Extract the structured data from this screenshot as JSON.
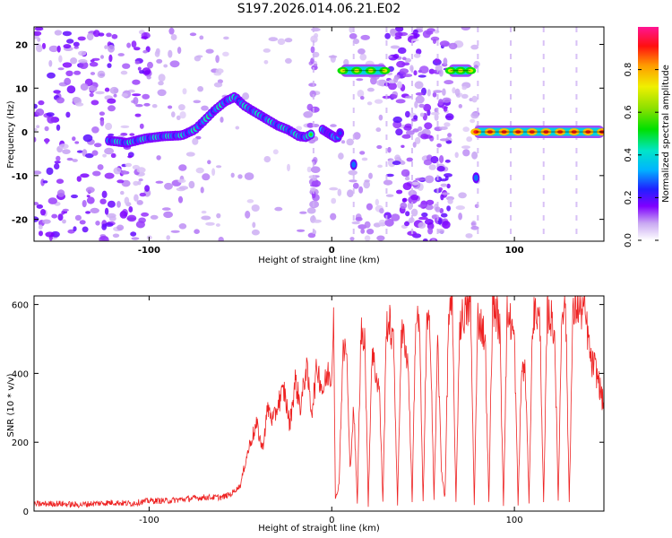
{
  "chart_data": [
    {
      "type": "heatmap",
      "title": "S197.2026.014.06.21.E02",
      "xlabel": "Height of straight line (km)",
      "ylabel": "Frequency (Hz)",
      "xlim": [
        -163,
        149
      ],
      "ylim": [
        -25,
        24
      ],
      "xticks": [
        -100,
        0,
        100
      ],
      "yticks": [
        -20,
        -10,
        0,
        10,
        20
      ],
      "colorbar": {
        "label": "Normalized spectral amplitude",
        "range": [
          0.0,
          1.0
        ],
        "ticks": [
          0.0,
          0.2,
          0.4,
          0.6,
          0.8
        ],
        "tick_labels": [
          "0.0",
          "0.2",
          "0.4",
          "0.6",
          "0.8"
        ],
        "colormap": [
          "#ffffff",
          "#c9a8f2",
          "#7f00ff",
          "#2020ff",
          "#00b4ff",
          "#00e5c8",
          "#00e000",
          "#8ee000",
          "#f0f000",
          "#ff9a00",
          "#ff1010",
          "#ff1493"
        ]
      },
      "ridge": {
        "name": "main frequency track",
        "points": [
          [
            -122,
            -2.0
          ],
          [
            -112,
            -2.5
          ],
          [
            -102,
            -1.5
          ],
          [
            -92,
            -1.0
          ],
          [
            -82,
            -0.8
          ],
          [
            -75,
            0.5
          ],
          [
            -70,
            2.5
          ],
          [
            -64,
            5.0
          ],
          [
            -58,
            7.0
          ],
          [
            -53,
            8.0
          ],
          [
            -48,
            6.0
          ],
          [
            -42,
            4.5
          ],
          [
            -36,
            3.0
          ],
          [
            -30,
            1.5
          ],
          [
            -24,
            0.5
          ],
          [
            -18,
            -1.0
          ],
          [
            -14,
            -1.2
          ],
          [
            -11,
            -0.5
          ]
        ]
      },
      "ridge_after_gap": [
        [
          -5,
          0.5
        ],
        [
          0,
          -0.8
        ],
        [
          3,
          -1.5
        ],
        [
          5,
          0.0
        ]
      ],
      "tone_segments": [
        {
          "x": [
            6,
            29
          ],
          "freq": 14.0
        },
        {
          "x": [
            65,
            76
          ],
          "freq": 14.0
        },
        {
          "x": [
            79,
            148
          ],
          "freq": 0.0
        }
      ],
      "secondary_spots": [
        [
          12,
          -7.5
        ],
        [
          79,
          -10.5
        ]
      ]
    },
    {
      "type": "line",
      "xlabel": "Height of straight line (km)",
      "ylabel": "SNR (10 * v/v)",
      "xlim": [
        -163,
        149
      ],
      "ylim": [
        0,
        625
      ],
      "xticks": [
        -100,
        0,
        100
      ],
      "yticks": [
        0,
        200,
        400,
        600
      ],
      "series": [
        {
          "name": "SNR",
          "color": "#ee2222",
          "x": [
            -163,
            -150,
            -140,
            -130,
            -120,
            -110,
            -100,
            -90,
            -80,
            -70,
            -60,
            -55,
            -50,
            -47,
            -44,
            -41,
            -38,
            -35,
            -32,
            -29,
            -26,
            -23,
            -20,
            -17,
            -14,
            -11,
            -8,
            -5,
            -2,
            0,
            1,
            2,
            4,
            6,
            8,
            10,
            12,
            14,
            16,
            18,
            20,
            22,
            24,
            26,
            28,
            30,
            32,
            34,
            36,
            38,
            40,
            42,
            44,
            46,
            48,
            50,
            52,
            54,
            56,
            58,
            60,
            62,
            64,
            66,
            68,
            70,
            72,
            74,
            76,
            78,
            80,
            82,
            84,
            86,
            88,
            90,
            92,
            94,
            96,
            98,
            100,
            102,
            104,
            106,
            108,
            110,
            112,
            114,
            116,
            118,
            120,
            122,
            124,
            126,
            128,
            130,
            132,
            134,
            136,
            138,
            140,
            142,
            144,
            146,
            149
          ],
          "values": [
            20,
            22,
            18,
            22,
            25,
            22,
            30,
            30,
            35,
            40,
            40,
            50,
            75,
            150,
            210,
            250,
            180,
            300,
            260,
            320,
            350,
            250,
            380,
            300,
            420,
            290,
            420,
            350,
            400,
            390,
            620,
            30,
            80,
            450,
            480,
            120,
            300,
            20,
            520,
            520,
            20,
            470,
            400,
            360,
            30,
            550,
            540,
            470,
            20,
            510,
            500,
            410,
            30,
            560,
            540,
            20,
            540,
            520,
            30,
            500,
            120,
            40,
            570,
            590,
            20,
            540,
            570,
            580,
            600,
            20,
            560,
            540,
            500,
            20,
            600,
            580,
            530,
            20,
            570,
            550,
            500,
            20,
            420,
            400,
            30,
            560,
            580,
            540,
            20,
            580,
            560,
            520,
            30,
            600,
            610,
            30,
            560,
            600,
            580,
            590,
            520,
            430,
            420,
            380,
            300
          ]
        }
      ]
    }
  ]
}
